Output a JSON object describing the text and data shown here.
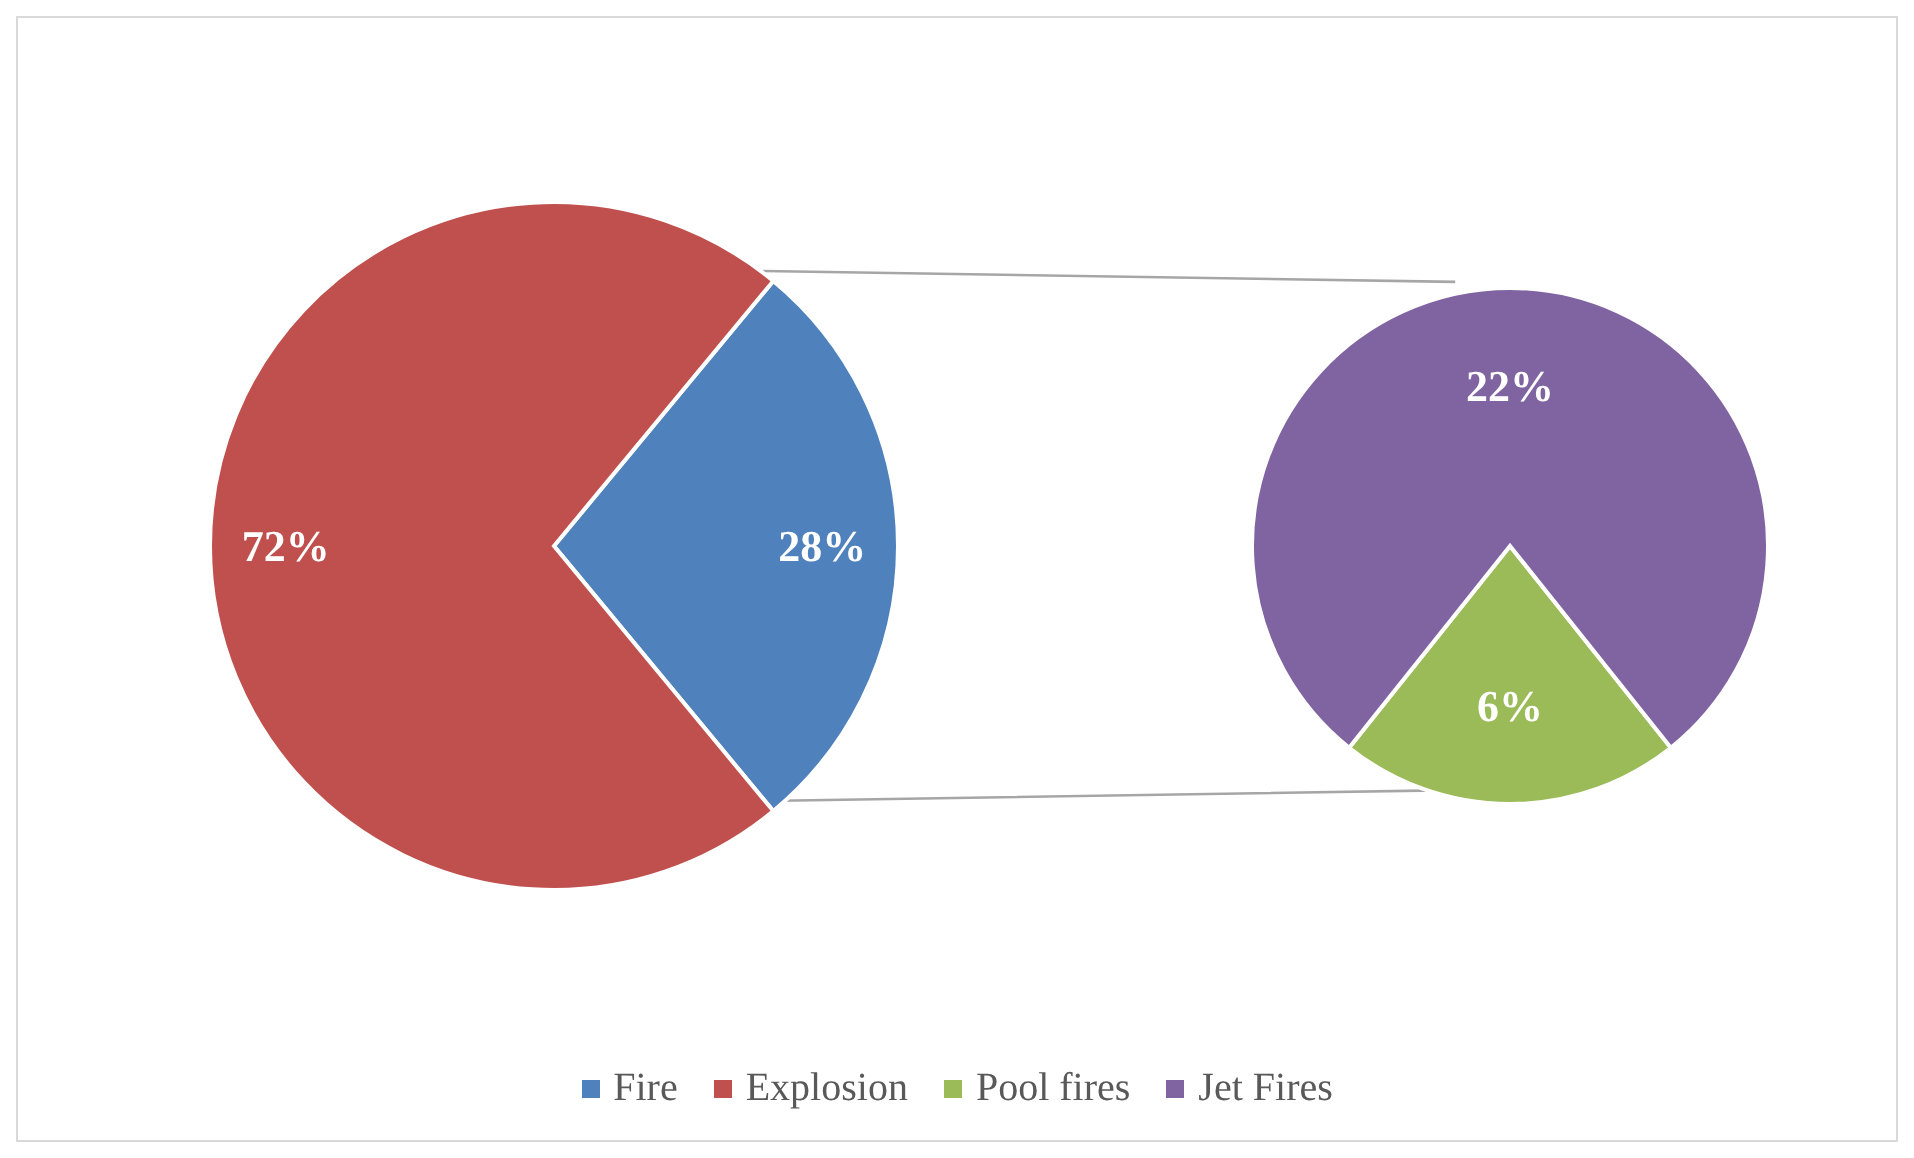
{
  "chart_data": [
    {
      "type": "pie",
      "categories": [
        "Fire",
        "Explosion"
      ],
      "values": [
        28,
        72
      ],
      "colors": [
        "#4f81bd",
        "#c0504d"
      ],
      "value_labels": [
        "28%",
        "72%"
      ],
      "legend": "bottom"
    },
    {
      "type": "pie",
      "categories": [
        "Pool fires",
        "Jet Fires"
      ],
      "values": [
        6,
        22
      ],
      "colors": [
        "#9bbb59",
        "#8064a2"
      ],
      "value_labels": [
        "6%",
        "22%"
      ],
      "legend": "bottom"
    }
  ]
}
